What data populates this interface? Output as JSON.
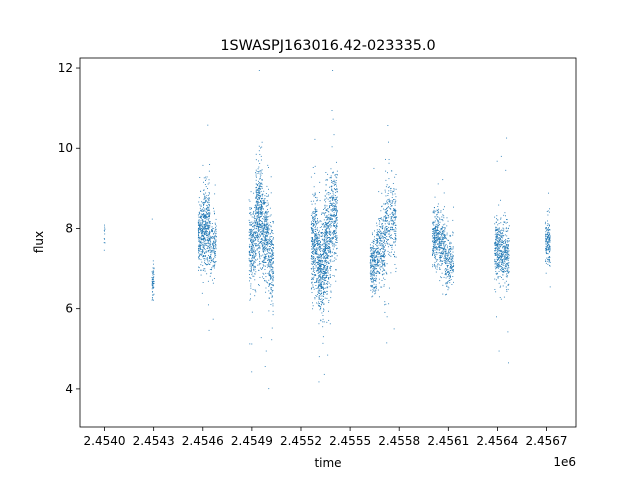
{
  "chart_data": {
    "type": "scatter",
    "title": "1SWASPJ163016.42-023335.0",
    "xlabel": "time",
    "ylabel": "flux",
    "x_offset_label": "1e6",
    "xlim": [
      2453850,
      2456880
    ],
    "ylim": [
      3.05,
      12.25
    ],
    "x_ticks": [
      2454000,
      2454300,
      2454600,
      2454900,
      2455200,
      2455500,
      2455800,
      2456100,
      2456400,
      2456700
    ],
    "x_tick_labels": [
      "2.4540",
      "2.4543",
      "2.4546",
      "2.4549",
      "2.4552",
      "2.4555",
      "2.4558",
      "2.4561",
      "2.4564",
      "2.4567"
    ],
    "y_ticks": [
      4,
      6,
      8,
      10,
      12
    ],
    "y_tick_labels": [
      "4",
      "6",
      "8",
      "10",
      "12"
    ],
    "grid": false,
    "marker_color": "#1f77b4",
    "series": [
      {
        "clusters": [
          {
            "x_start": 2453995,
            "x_end": 2454000,
            "y_center": 7.9,
            "spread": 0.35,
            "count": 12
          },
          {
            "x_start": 2454287,
            "x_end": 2454300,
            "y_center": 6.7,
            "spread": 0.4,
            "count": 60
          },
          {
            "x_start": 2454570,
            "x_end": 2454600,
            "y_center": 7.9,
            "spread": 0.7,
            "count": 220
          },
          {
            "x_start": 2454600,
            "x_end": 2454640,
            "y_center": 8.1,
            "spread": 0.9,
            "count": 320
          },
          {
            "x_start": 2454640,
            "x_end": 2454680,
            "y_center": 7.6,
            "spread": 0.6,
            "count": 160
          },
          {
            "x_start": 2454880,
            "x_end": 2454920,
            "y_center": 7.6,
            "spread": 0.9,
            "count": 260
          },
          {
            "x_start": 2454920,
            "x_end": 2454960,
            "y_center": 8.4,
            "spread": 1.2,
            "count": 380
          },
          {
            "x_start": 2454960,
            "x_end": 2455000,
            "y_center": 7.8,
            "spread": 1.0,
            "count": 300
          },
          {
            "x_start": 2455000,
            "x_end": 2455030,
            "y_center": 7.2,
            "spread": 1.0,
            "count": 200
          },
          {
            "x_start": 2455260,
            "x_end": 2455300,
            "y_center": 7.6,
            "spread": 1.1,
            "count": 320
          },
          {
            "x_start": 2455300,
            "x_end": 2455340,
            "y_center": 7.0,
            "spread": 1.1,
            "count": 380
          },
          {
            "x_start": 2455340,
            "x_end": 2455380,
            "y_center": 7.6,
            "spread": 1.2,
            "count": 360
          },
          {
            "x_start": 2455380,
            "x_end": 2455420,
            "y_center": 8.4,
            "spread": 1.1,
            "count": 260
          },
          {
            "x_start": 2455620,
            "x_end": 2455660,
            "y_center": 7.1,
            "spread": 0.7,
            "count": 220
          },
          {
            "x_start": 2455660,
            "x_end": 2455710,
            "y_center": 7.5,
            "spread": 0.8,
            "count": 260
          },
          {
            "x_start": 2455710,
            "x_end": 2455780,
            "y_center": 8.2,
            "spread": 0.9,
            "count": 280
          },
          {
            "x_start": 2456000,
            "x_end": 2456040,
            "y_center": 7.8,
            "spread": 0.6,
            "count": 220
          },
          {
            "x_start": 2456040,
            "x_end": 2456080,
            "y_center": 7.6,
            "spread": 0.6,
            "count": 200
          },
          {
            "x_start": 2456080,
            "x_end": 2456130,
            "y_center": 7.2,
            "spread": 0.6,
            "count": 180
          },
          {
            "x_start": 2456380,
            "x_end": 2456420,
            "y_center": 7.5,
            "spread": 0.7,
            "count": 240
          },
          {
            "x_start": 2456420,
            "x_end": 2456470,
            "y_center": 7.4,
            "spread": 0.7,
            "count": 260
          },
          {
            "x_start": 2456690,
            "x_end": 2456720,
            "y_center": 7.7,
            "spread": 0.5,
            "count": 160
          }
        ]
      }
    ]
  }
}
